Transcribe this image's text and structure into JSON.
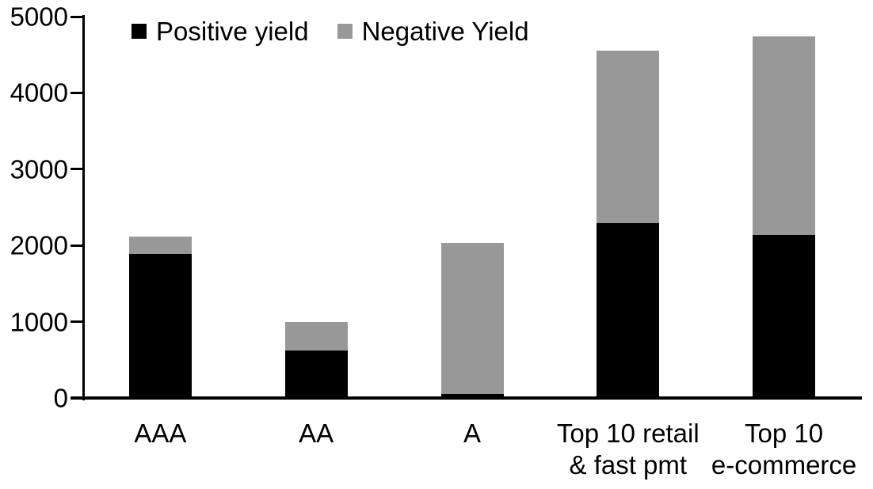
{
  "chart_data": {
    "type": "bar",
    "stacked": true,
    "title": "",
    "xlabel": "",
    "ylabel": "",
    "categories": [
      "AAA",
      "AA",
      "A",
      "Top 10 retail & fast pmt",
      "Top 10 e-commerce"
    ],
    "category_label_lines": [
      [
        "AAA"
      ],
      [
        "AA"
      ],
      [
        "A"
      ],
      [
        "Top 10 retail",
        "& fast pmt"
      ],
      [
        "Top 10",
        "e-commerce"
      ]
    ],
    "series": [
      {
        "name": "Positive yield",
        "color": "#000000",
        "values": [
          1890,
          620,
          50,
          2290,
          2140
        ]
      },
      {
        "name": "Negative Yield",
        "color": "#989898",
        "values": [
          230,
          380,
          1980,
          2260,
          2600
        ]
      }
    ],
    "totals": [
      2120,
      1000,
      2030,
      4550,
      4740
    ],
    "ylim": [
      0,
      5000
    ],
    "yticks": [
      0,
      1000,
      2000,
      3000,
      4000,
      5000
    ],
    "grid": false,
    "legend_position": "top",
    "axis_color": "#000000",
    "background_color": "#ffffff"
  }
}
